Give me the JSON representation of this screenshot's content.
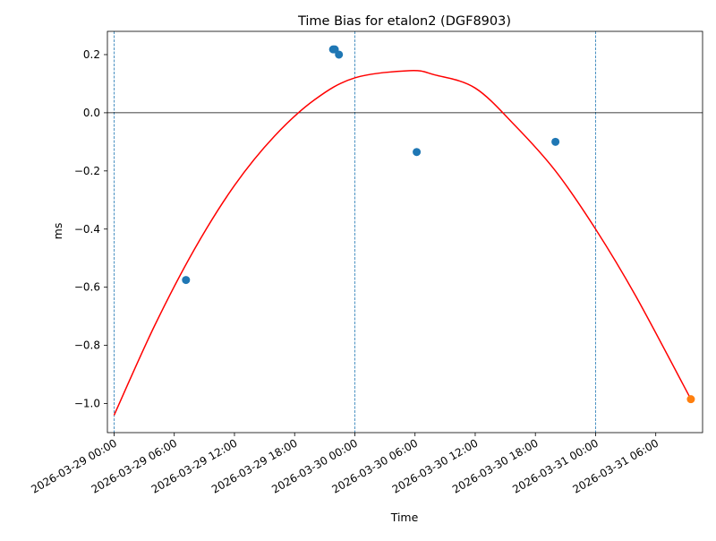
{
  "chart_data": {
    "type": "scatter",
    "title": "Time Bias for etalon2 (DGF8903)",
    "xlabel": "Time",
    "ylabel": "ms",
    "x_range": [
      "2026-03-28T23:20:00",
      "2026-03-31T10:40:00"
    ],
    "ylim": [
      -1.1,
      0.28
    ],
    "x_ticks": [
      {
        "value": "2026-03-29T00:00:00",
        "label": "2026-03-29 00:00"
      },
      {
        "value": "2026-03-29T06:00:00",
        "label": "2026-03-29 06:00"
      },
      {
        "value": "2026-03-29T12:00:00",
        "label": "2026-03-29 12:00"
      },
      {
        "value": "2026-03-29T18:00:00",
        "label": "2026-03-29 18:00"
      },
      {
        "value": "2026-03-30T00:00:00",
        "label": "2026-03-30 00:00"
      },
      {
        "value": "2026-03-30T06:00:00",
        "label": "2026-03-30 06:00"
      },
      {
        "value": "2026-03-30T12:00:00",
        "label": "2026-03-30 12:00"
      },
      {
        "value": "2026-03-30T18:00:00",
        "label": "2026-03-30 18:00"
      },
      {
        "value": "2026-03-31T00:00:00",
        "label": "2026-03-31 00:00"
      },
      {
        "value": "2026-03-31T06:00:00",
        "label": "2026-03-31 06:00"
      }
    ],
    "y_ticks": [
      {
        "value": 0.2,
        "label": "0.2"
      },
      {
        "value": 0.0,
        "label": "0.0"
      },
      {
        "value": -0.2,
        "label": "−0.2"
      },
      {
        "value": -0.4,
        "label": "−0.4"
      },
      {
        "value": -0.6,
        "label": "−0.6"
      },
      {
        "value": -0.8,
        "label": "−0.8"
      },
      {
        "value": -1.0,
        "label": "−1.0"
      }
    ],
    "hlines": [
      {
        "y": 0.0,
        "color": "#000000"
      }
    ],
    "vlines": [
      {
        "x": "2026-03-29T00:00:00",
        "color": "#1f77b4",
        "style": "dashed"
      },
      {
        "x": "2026-03-30T00:00:00",
        "color": "#1f77b4",
        "style": "dashed"
      },
      {
        "x": "2026-03-31T00:00:00",
        "color": "#1f77b4",
        "style": "dashed"
      }
    ],
    "series": [
      {
        "kind": "scatter",
        "color": "#1f77b4",
        "points": [
          {
            "x": "2026-03-29T07:10:00",
            "y": -0.575
          },
          {
            "x": "2026-03-29T21:50:00",
            "y": 0.218
          },
          {
            "x": "2026-03-29T22:00:00",
            "y": 0.218
          },
          {
            "x": "2026-03-29T22:25:00",
            "y": 0.2
          },
          {
            "x": "2026-03-30T06:10:00",
            "y": -0.135
          },
          {
            "x": "2026-03-30T20:00:00",
            "y": -0.1
          }
        ]
      },
      {
        "kind": "scatter",
        "color": "#ff7f0e",
        "points": [
          {
            "x": "2026-03-31T09:30:00",
            "y": -0.985
          }
        ]
      },
      {
        "kind": "line",
        "color": "#ff0000",
        "points": [
          {
            "x": "2026-03-29T00:00:00",
            "y": -1.04
          },
          {
            "x": "2026-03-29T04:00:00",
            "y": -0.735
          },
          {
            "x": "2026-03-29T08:00:00",
            "y": -0.47
          },
          {
            "x": "2026-03-29T12:00:00",
            "y": -0.25
          },
          {
            "x": "2026-03-29T16:00:00",
            "y": -0.08
          },
          {
            "x": "2026-03-29T20:00:00",
            "y": 0.045
          },
          {
            "x": "2026-03-30T00:00:00",
            "y": 0.12
          },
          {
            "x": "2026-03-30T05:30:00",
            "y": 0.145
          },
          {
            "x": "2026-03-30T08:00:00",
            "y": 0.13
          },
          {
            "x": "2026-03-30T12:00:00",
            "y": 0.085
          },
          {
            "x": "2026-03-30T16:00:00",
            "y": -0.045
          },
          {
            "x": "2026-03-30T20:00:00",
            "y": -0.2
          },
          {
            "x": "2026-03-31T00:00:00",
            "y": -0.4
          },
          {
            "x": "2026-03-31T04:00:00",
            "y": -0.63
          },
          {
            "x": "2026-03-31T09:30:00",
            "y": -0.985
          }
        ]
      }
    ],
    "grid": false,
    "legend": "none"
  }
}
